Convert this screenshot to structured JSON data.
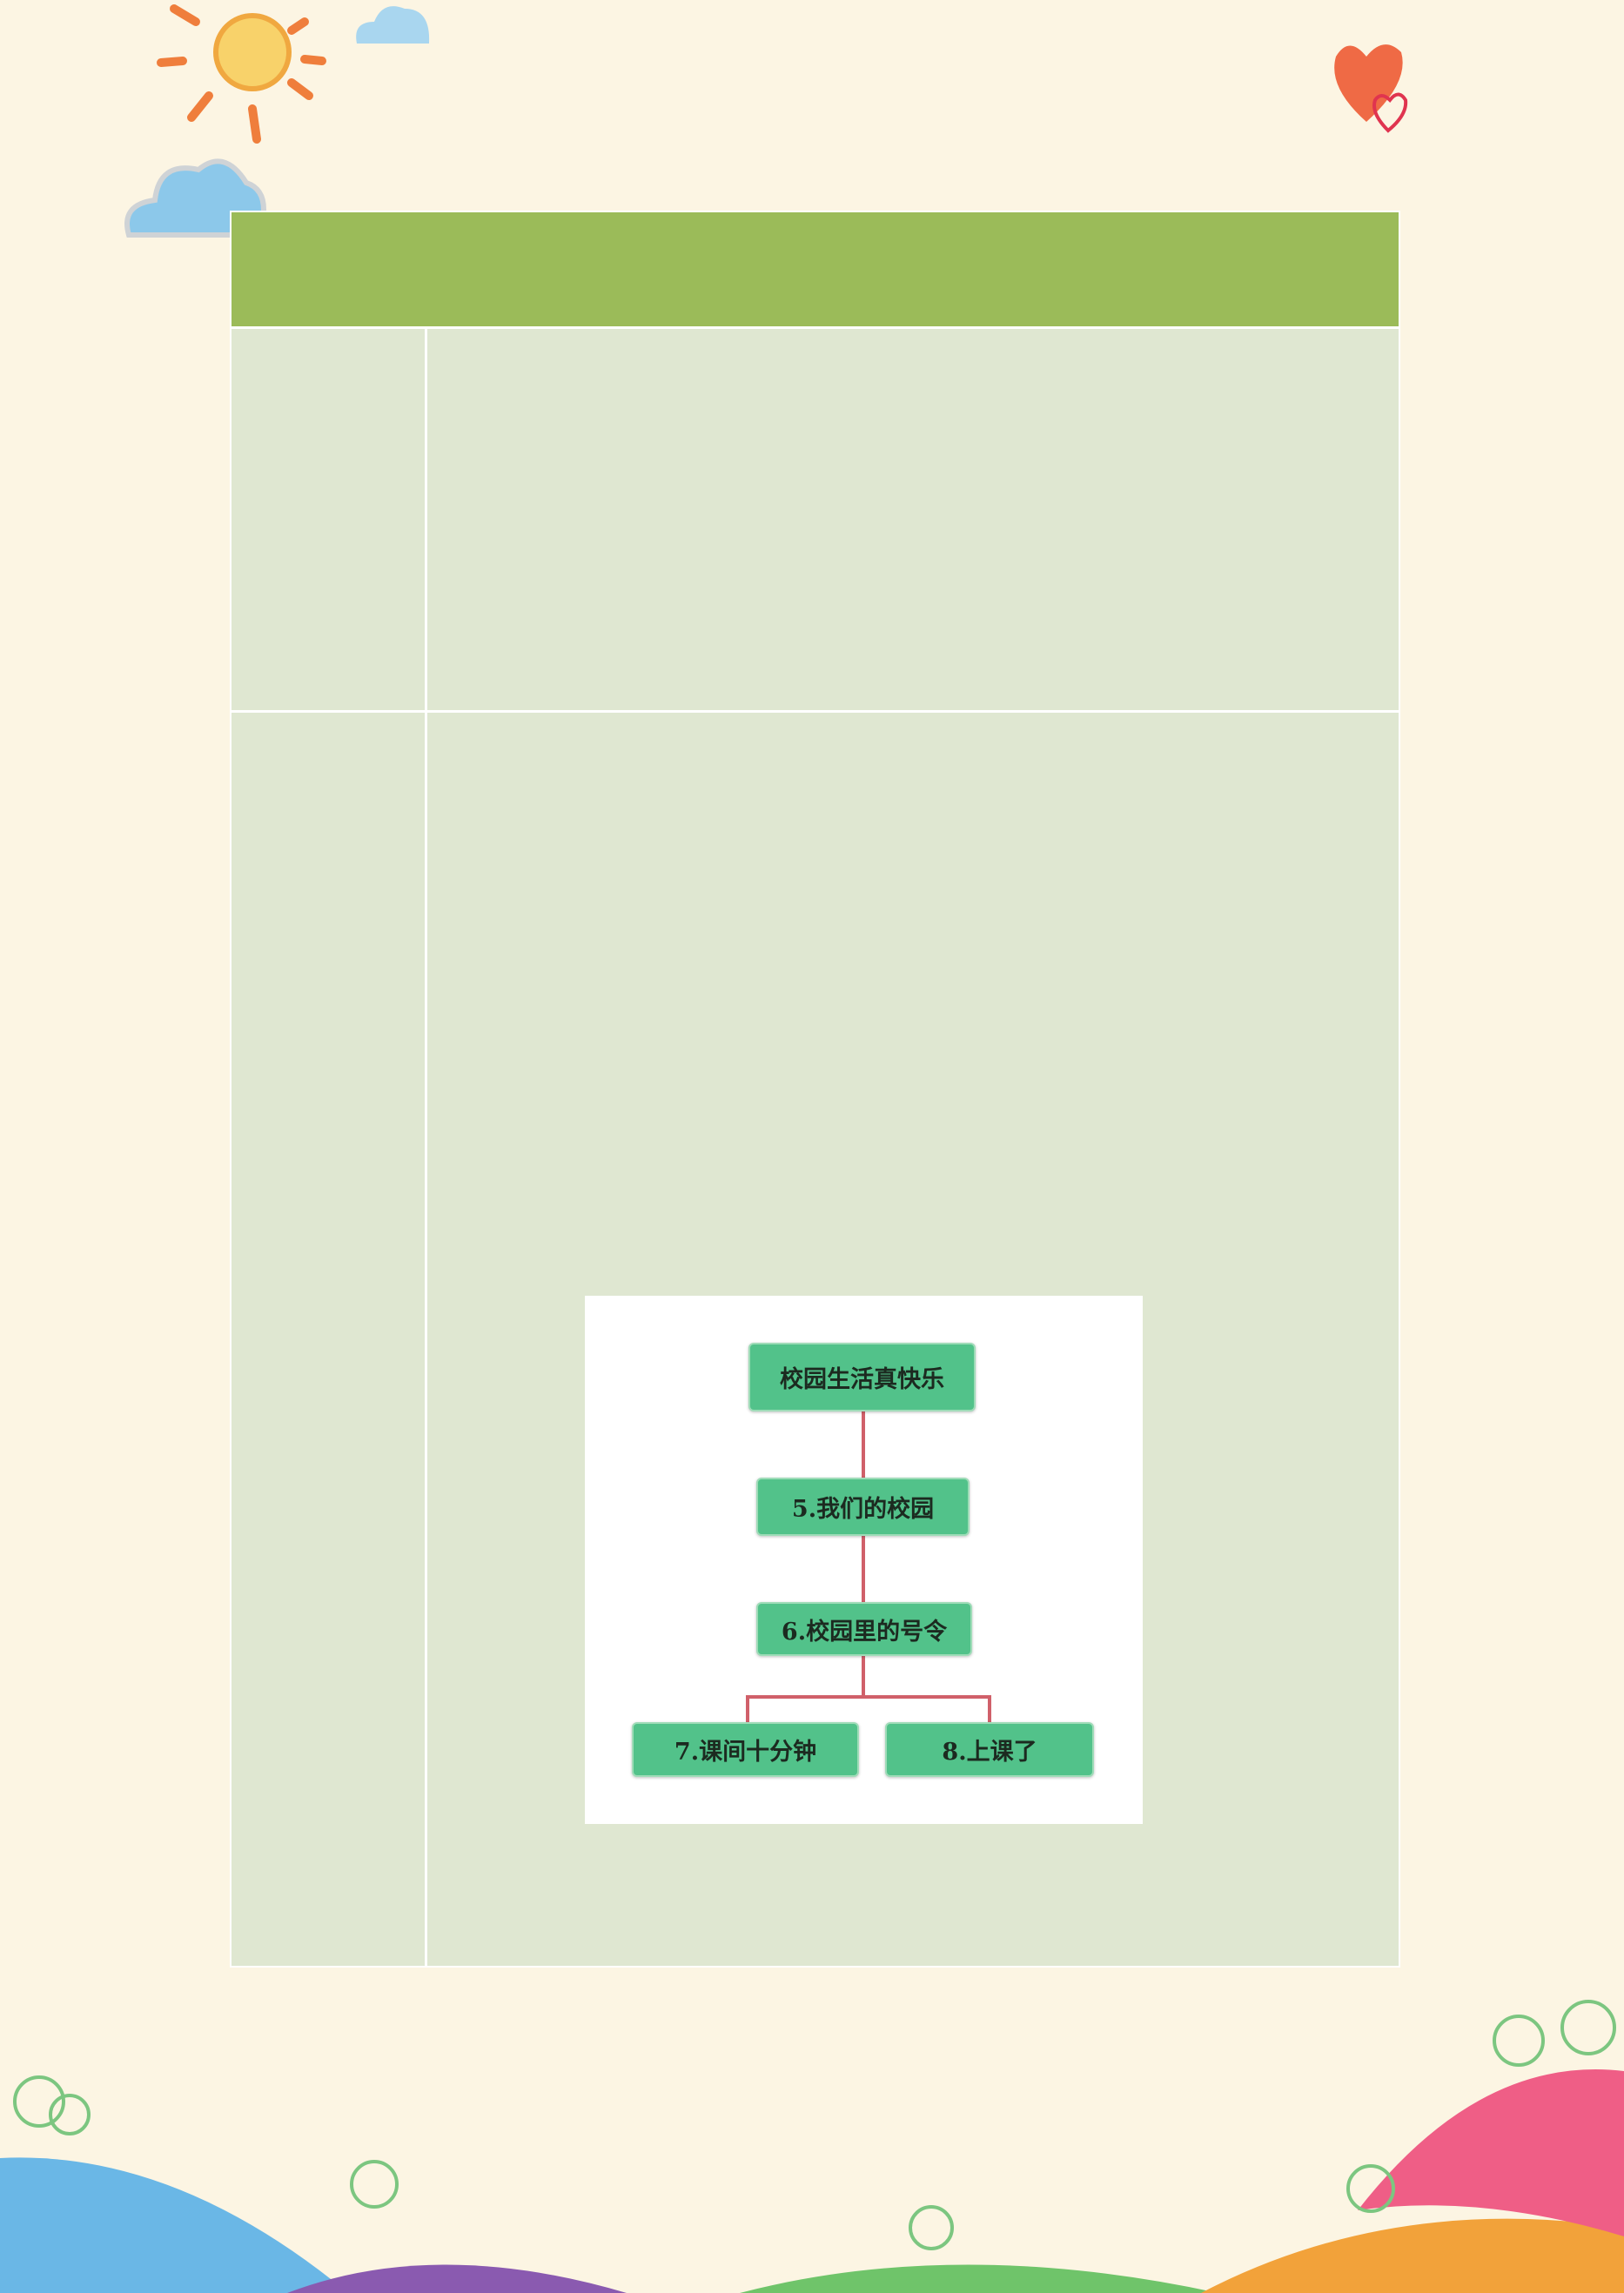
{
  "table": {
    "header": "",
    "rows": [
      {
        "label": "",
        "content": ""
      },
      {
        "label": "",
        "content": ""
      }
    ]
  },
  "diagram": {
    "root": "校园生活真快乐",
    "level1": "5.我们的校园",
    "level2": "6.校园里的号令",
    "children": [
      "7.课间十分钟",
      "8.上课了"
    ],
    "box_color": "#52c28a",
    "line_color": "#d0606a"
  },
  "colors": {
    "page": "#fcf5e3",
    "header": "#9bbb59",
    "cell": "#dfe7d1"
  }
}
